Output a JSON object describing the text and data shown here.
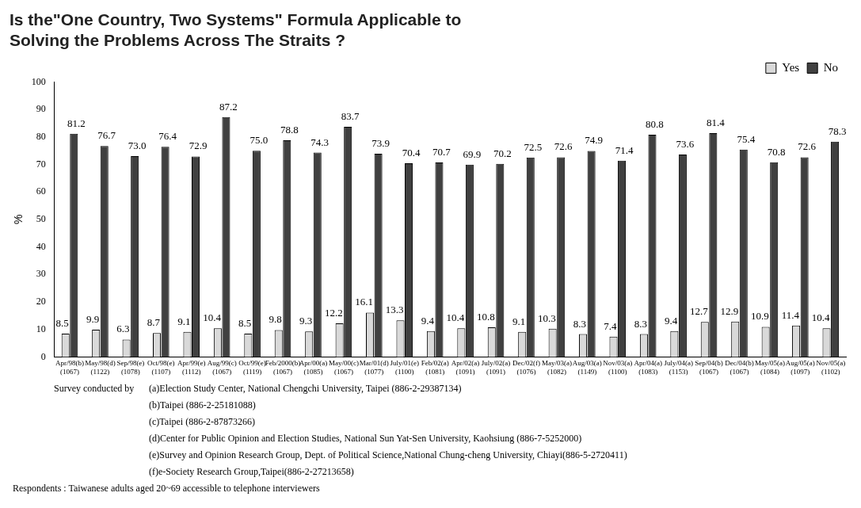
{
  "chart_data": {
    "type": "bar",
    "title": "Is the\"One Country, Two Systems\" Formula Applicable to\nSolving the Problems Across The Straits ?",
    "ylabel": "%",
    "categories": [
      "Apr/98(b)\n(1067)",
      "May/98(d)\n(1122)",
      "Sep/98(e)\n(1078)",
      "Oct/98(e)\n(1107)",
      "Apr/99(e)\n(1112)",
      "Aug/99(c)\n(1067)",
      "Oct/99(e)\n(1119)",
      "Feb/2000(b)\n(1067)",
      "Apr/00(a)\n(1085)",
      "May/00(c)\n(1067)",
      "Mar/01(d)\n(1077)",
      "July/01(e)\n(1100)",
      "Feb/02(a)\n(1081)",
      "Apr/02(a)\n(1091)",
      "July/02(a)\n(1091)",
      "Dec/02(f)\n(1076)",
      "May/03(a)\n(1082)",
      "Aug/03(a)\n(1149)",
      "Nov/03(a)\n(1100)",
      "Apr/04(a)\n(1083)",
      "July/04(a)\n(1153)",
      "Sep/04(b)\n(1067)",
      "Dec/04(b)\n(1067)",
      "May/05(a)\n(1084)",
      "Aug/05(a)\n(1097)",
      "Nov/05(a)\n(1102)"
    ],
    "series": [
      {
        "name": "Yes",
        "color": "#d9d9d9",
        "values": [
          8.5,
          9.9,
          6.3,
          8.7,
          9.1,
          10.4,
          8.5,
          9.8,
          9.3,
          12.2,
          16.1,
          13.3,
          9.4,
          10.4,
          10.8,
          9.1,
          10.3,
          8.3,
          7.4,
          8.3,
          9.4,
          12.7,
          12.9,
          10.9,
          11.4,
          10.4
        ],
        "value_labels": [
          "8.5",
          "9.9",
          "6.3",
          "8.7",
          "9.1",
          "10.4",
          "8.5",
          "9.8",
          "9.3",
          "12.2",
          "16.1",
          "13.3",
          "9.4",
          "10.4",
          "10.8",
          "9.1",
          "10.3",
          "8.3",
          "7.4",
          "8.3",
          "9.4",
          "12.7",
          "12.9",
          "10.9",
          "11.4",
          "10.4"
        ]
      },
      {
        "name": "No",
        "color": "#404040",
        "values": [
          81.2,
          76.7,
          73.0,
          76.4,
          72.9,
          87.2,
          75.0,
          78.8,
          74.3,
          83.7,
          73.9,
          70.4,
          70.7,
          69.9,
          70.2,
          72.5,
          72.6,
          74.9,
          71.4,
          80.8,
          73.6,
          81.4,
          75.4,
          70.8,
          72.6,
          78.3
        ],
        "value_labels": [
          "81.2",
          "76.7",
          "73.0",
          "76.4",
          "72.9",
          "87.2",
          "75.0",
          "78.8",
          "74.3",
          "83.7",
          "73.9",
          "70.4",
          "70.7",
          "69.9",
          "70.2",
          "72.5",
          "72.6",
          "74.9",
          "71.4",
          "80.8",
          "73.6",
          "81.4",
          "75.4",
          "70.8",
          "72.6",
          "78.3"
        ]
      }
    ],
    "ylim": [
      0,
      100
    ],
    "yticks": [
      0,
      10,
      20,
      30,
      40,
      50,
      60,
      70,
      80,
      90,
      100
    ],
    "grid": false,
    "legend": "top right",
    "annotations": [
      "Survey conducted by",
      "(a)Election Study Center, National Chengchi University, Taipei (886-2-29387134)",
      "(b)Taipei (886-2-25181088)",
      "(c)Taipei (886-2-87873266)",
      "(d)Center for Public Opinion and Election Studies, National Sun Yat-Sen University, Kaohsiung (886-7-5252000)",
      "(e)Survey and Opinion Research Group, Dept. of Political Science,National Chung-cheng University, Chiayi(886-5-2720411)",
      "(f)e-Society Research Group,Taipei(886-2-27213658)",
      "Respondents : Taiwanese adults aged 20~69 accessible to telephone interviewers"
    ]
  }
}
